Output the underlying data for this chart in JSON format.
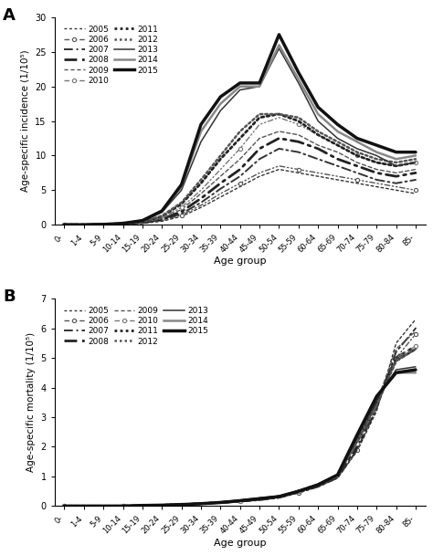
{
  "age_groups": [
    "0-",
    "1-4",
    "5-9",
    "10-14",
    "15-19",
    "20-24",
    "25-29",
    "30-34",
    "35-39",
    "40-44",
    "45-49",
    "50-54",
    "55-59",
    "60-64",
    "65-69",
    "70-74",
    "75-79",
    "80-84",
    "85-"
  ],
  "incidence": {
    "2005": [
      0.0,
      0.0,
      0.05,
      0.1,
      0.2,
      0.5,
      1.2,
      2.5,
      4.0,
      5.5,
      7.0,
      8.0,
      7.5,
      7.0,
      6.5,
      6.0,
      5.5,
      5.0,
      4.5
    ],
    "2006": [
      0.0,
      0.0,
      0.05,
      0.1,
      0.2,
      0.6,
      1.4,
      2.8,
      4.5,
      6.0,
      7.5,
      8.5,
      8.0,
      7.5,
      7.0,
      6.5,
      6.0,
      5.5,
      5.0
    ],
    "2007": [
      0.0,
      0.0,
      0.05,
      0.1,
      0.3,
      0.7,
      1.6,
      3.2,
      5.2,
      7.0,
      9.5,
      11.0,
      10.5,
      9.5,
      8.5,
      7.5,
      6.5,
      6.0,
      6.5
    ],
    "2008": [
      0.0,
      0.0,
      0.05,
      0.1,
      0.3,
      0.8,
      1.9,
      3.8,
      6.0,
      8.0,
      11.0,
      12.5,
      12.0,
      11.0,
      9.5,
      8.5,
      7.5,
      7.0,
      7.5
    ],
    "2009": [
      0.0,
      0.0,
      0.05,
      0.1,
      0.3,
      0.9,
      2.2,
      4.5,
      7.0,
      9.5,
      12.5,
      13.5,
      13.0,
      11.5,
      10.5,
      9.0,
      8.0,
      7.5,
      8.0
    ],
    "2010": [
      0.0,
      0.0,
      0.05,
      0.1,
      0.3,
      1.0,
      2.5,
      5.0,
      8.0,
      11.0,
      14.5,
      15.5,
      14.5,
      13.0,
      11.5,
      10.0,
      9.0,
      8.5,
      9.0
    ],
    "2011": [
      0.0,
      0.0,
      0.05,
      0.15,
      0.4,
      1.2,
      3.0,
      6.0,
      9.5,
      12.5,
      15.5,
      16.0,
      15.0,
      13.0,
      11.5,
      10.0,
      9.0,
      8.5,
      9.0
    ],
    "2012": [
      0.0,
      0.0,
      0.05,
      0.15,
      0.4,
      1.3,
      3.2,
      6.5,
      10.0,
      13.5,
      16.0,
      16.0,
      15.5,
      13.5,
      12.0,
      10.5,
      9.5,
      9.0,
      9.5
    ],
    "2013": [
      0.0,
      0.0,
      0.05,
      0.2,
      0.5,
      1.8,
      5.0,
      12.0,
      16.5,
      19.5,
      20.0,
      25.5,
      20.5,
      15.0,
      12.5,
      11.0,
      10.0,
      8.5,
      9.0
    ],
    "2014": [
      0.0,
      0.0,
      0.05,
      0.2,
      0.6,
      2.0,
      5.5,
      13.5,
      17.5,
      20.0,
      20.0,
      26.0,
      21.0,
      16.0,
      13.5,
      12.0,
      10.5,
      9.5,
      10.0
    ],
    "2015": [
      0.0,
      0.0,
      0.05,
      0.2,
      0.6,
      2.0,
      5.8,
      14.5,
      18.5,
      20.5,
      20.5,
      27.5,
      22.0,
      17.0,
      14.5,
      12.5,
      11.5,
      10.5,
      10.5
    ]
  },
  "mortality": {
    "2005": [
      0.0,
      0.0,
      0.0,
      0.0,
      0.02,
      0.03,
      0.05,
      0.08,
      0.1,
      0.15,
      0.2,
      0.28,
      0.45,
      0.65,
      0.95,
      1.85,
      3.2,
      5.5,
      6.3
    ],
    "2006": [
      0.0,
      0.0,
      0.0,
      0.0,
      0.02,
      0.03,
      0.05,
      0.08,
      0.1,
      0.15,
      0.2,
      0.28,
      0.45,
      0.65,
      0.95,
      1.9,
      3.3,
      5.0,
      5.8
    ],
    "2007": [
      0.0,
      0.0,
      0.0,
      0.0,
      0.02,
      0.03,
      0.05,
      0.08,
      0.1,
      0.15,
      0.2,
      0.28,
      0.45,
      0.65,
      0.95,
      1.9,
      3.3,
      5.2,
      6.0
    ],
    "2008": [
      0.0,
      0.0,
      0.0,
      0.0,
      0.02,
      0.03,
      0.05,
      0.08,
      0.12,
      0.18,
      0.25,
      0.32,
      0.5,
      0.72,
      1.05,
      2.0,
      3.5,
      5.0,
      5.4
    ],
    "2009": [
      0.0,
      0.0,
      0.0,
      0.0,
      0.02,
      0.03,
      0.05,
      0.08,
      0.12,
      0.18,
      0.25,
      0.32,
      0.5,
      0.72,
      1.05,
      2.1,
      3.5,
      5.3,
      5.9
    ],
    "2010": [
      0.0,
      0.0,
      0.0,
      0.0,
      0.02,
      0.03,
      0.05,
      0.08,
      0.12,
      0.18,
      0.25,
      0.32,
      0.5,
      0.72,
      1.05,
      2.1,
      3.4,
      5.0,
      5.4
    ],
    "2011": [
      0.0,
      0.0,
      0.0,
      0.0,
      0.02,
      0.03,
      0.05,
      0.08,
      0.12,
      0.18,
      0.25,
      0.32,
      0.5,
      0.72,
      1.05,
      2.2,
      3.5,
      4.9,
      5.3
    ],
    "2012": [
      0.0,
      0.0,
      0.0,
      0.0,
      0.02,
      0.03,
      0.05,
      0.08,
      0.12,
      0.18,
      0.25,
      0.32,
      0.5,
      0.72,
      1.05,
      2.2,
      3.4,
      4.9,
      5.3
    ],
    "2013": [
      0.0,
      0.0,
      0.0,
      0.0,
      0.02,
      0.03,
      0.05,
      0.08,
      0.12,
      0.18,
      0.25,
      0.32,
      0.5,
      0.72,
      1.05,
      2.3,
      3.6,
      4.6,
      4.7
    ],
    "2014": [
      0.0,
      0.0,
      0.0,
      0.0,
      0.02,
      0.03,
      0.05,
      0.08,
      0.12,
      0.18,
      0.25,
      0.32,
      0.5,
      0.72,
      1.05,
      2.4,
      3.7,
      4.5,
      4.5
    ],
    "2015": [
      0.0,
      0.0,
      0.0,
      0.0,
      0.02,
      0.03,
      0.05,
      0.08,
      0.12,
      0.18,
      0.25,
      0.32,
      0.5,
      0.72,
      1.05,
      2.4,
      3.7,
      4.5,
      4.6
    ]
  },
  "incidence_ylim": [
    0,
    30
  ],
  "incidence_yticks": [
    0,
    5,
    10,
    15,
    20,
    25,
    30
  ],
  "mortality_ylim": [
    0,
    7
  ],
  "mortality_yticks": [
    0,
    1,
    2,
    3,
    4,
    5,
    6,
    7
  ],
  "ylabel_incidence": "Age-specific incidence (1/10⁵)",
  "ylabel_mortality": "Age-specific mortality (1/10⁵)",
  "xlabel": "Age group",
  "background_color": "#ffffff"
}
